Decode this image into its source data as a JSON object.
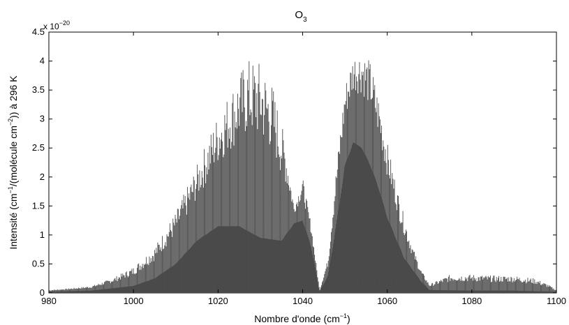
{
  "chart_data": {
    "type": "line",
    "title": "O",
    "title_sub": "3",
    "xlabel": {
      "main": "Nombre d'onde (cm",
      "sup": "−1",
      "close": ")"
    },
    "ylabel": {
      "part1": "Intensité (cm",
      "sup1": "−1",
      "part2": "/(molécule cm",
      "sup2": "−2",
      "part3": "))  à 296 K"
    },
    "y_multiplier": {
      "base": "x 10",
      "exp": "−20"
    },
    "xlim": [
      980,
      1100
    ],
    "ylim": [
      0,
      4.5
    ],
    "x_ticks": [
      {
        "value": 980,
        "label": "980"
      },
      {
        "value": 1000,
        "label": "1000"
      },
      {
        "value": 1020,
        "label": "1020"
      },
      {
        "value": 1040,
        "label": "1040"
      },
      {
        "value": 1060,
        "label": "1060"
      },
      {
        "value": 1080,
        "label": "1080"
      },
      {
        "value": 1100,
        "label": "1100"
      }
    ],
    "y_ticks": [
      {
        "value": 0,
        "label": "0"
      },
      {
        "value": 0.5,
        "label": "0.5"
      },
      {
        "value": 1,
        "label": "1"
      },
      {
        "value": 1.5,
        "label": "1.5"
      },
      {
        "value": 2,
        "label": "2"
      },
      {
        "value": 2.5,
        "label": "2.5"
      },
      {
        "value": 3,
        "label": "3"
      },
      {
        "value": 3.5,
        "label": "3.5"
      },
      {
        "value": 4,
        "label": "4"
      },
      {
        "value": 4.5,
        "label": "4.5"
      }
    ],
    "grid": false,
    "series": [
      {
        "color": "#4a4a4a",
        "envelope_points": [
          [
            980,
            0.05
          ],
          [
            985,
            0.08
          ],
          [
            990,
            0.12
          ],
          [
            995,
            0.25
          ],
          [
            1000,
            0.45
          ],
          [
            1005,
            0.8
          ],
          [
            1010,
            1.4
          ],
          [
            1015,
            2.2
          ],
          [
            1020,
            3.1
          ],
          [
            1025,
            3.8
          ],
          [
            1027,
            4.05
          ],
          [
            1030,
            4.0
          ],
          [
            1033,
            3.6
          ],
          [
            1036,
            2.6
          ],
          [
            1038,
            1.5
          ],
          [
            1040,
            2.0
          ],
          [
            1042,
            1.2
          ],
          [
            1044,
            0.05
          ],
          [
            1046,
            0.6
          ],
          [
            1048,
            2.2
          ],
          [
            1050,
            3.6
          ],
          [
            1052,
            4.15
          ],
          [
            1054,
            4.2
          ],
          [
            1056,
            4.0
          ],
          [
            1058,
            3.4
          ],
          [
            1060,
            2.6
          ],
          [
            1063,
            1.6
          ],
          [
            1066,
            0.8
          ],
          [
            1068,
            0.4
          ],
          [
            1070,
            0.15
          ],
          [
            1075,
            0.32
          ],
          [
            1080,
            0.32
          ],
          [
            1085,
            0.3
          ],
          [
            1090,
            0.3
          ],
          [
            1095,
            0.25
          ],
          [
            1098,
            0.15
          ],
          [
            1100,
            0.05
          ]
        ],
        "fill_envelope_points": [
          [
            980,
            0.02
          ],
          [
            990,
            0.04
          ],
          [
            1000,
            0.12
          ],
          [
            1005,
            0.25
          ],
          [
            1010,
            0.5
          ],
          [
            1015,
            0.9
          ],
          [
            1020,
            1.15
          ],
          [
            1025,
            1.15
          ],
          [
            1030,
            0.95
          ],
          [
            1035,
            0.9
          ],
          [
            1038,
            1.2
          ],
          [
            1040,
            1.25
          ],
          [
            1042,
            0.8
          ],
          [
            1044,
            0.02
          ],
          [
            1046,
            0.3
          ],
          [
            1048,
            1.2
          ],
          [
            1050,
            2.2
          ],
          [
            1052,
            2.6
          ],
          [
            1054,
            2.5
          ],
          [
            1056,
            2.2
          ],
          [
            1058,
            1.8
          ],
          [
            1060,
            1.3
          ],
          [
            1064,
            0.6
          ],
          [
            1068,
            0.2
          ],
          [
            1070,
            0.05
          ],
          [
            1080,
            0.04
          ],
          [
            1090,
            0.04
          ],
          [
            1100,
            0.02
          ]
        ]
      }
    ]
  }
}
